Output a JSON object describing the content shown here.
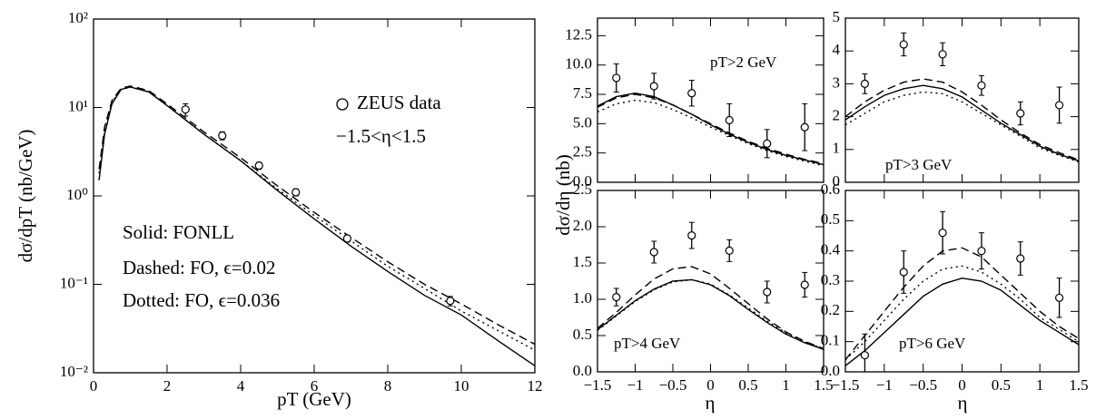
{
  "chart_data": [
    {
      "type": "line",
      "log_y": true,
      "x_label": "pT (GeV)",
      "y_label": "dσ/dpT (nb/GeV)",
      "annotation": "−1.5<η<1.5",
      "xlim": [
        0,
        12
      ],
      "xticks": [
        0,
        2,
        4,
        6,
        8,
        10,
        12
      ],
      "ylim": [
        0.01,
        100
      ],
      "yticks": [
        {
          "value": 0.01,
          "label": "10⁻²"
        },
        {
          "value": 0.1,
          "label": "10⁻¹"
        },
        {
          "value": 1,
          "label": "10⁰"
        },
        {
          "value": 10,
          "label": "10¹"
        },
        {
          "value": 100,
          "label": "10²"
        }
      ],
      "x": [
        0.15,
        0.3,
        0.5,
        0.75,
        1,
        1.5,
        2,
        3,
        4,
        5,
        6,
        7,
        8,
        9,
        10,
        11,
        12
      ],
      "series": [
        {
          "name": "Solid: FONLL",
          "color": "#000000",
          "dash": "solid",
          "values": [
            1.5,
            5,
            11,
            16,
            17,
            15,
            10.5,
            5,
            2.5,
            1.15,
            0.55,
            0.27,
            0.14,
            0.075,
            0.045,
            0.023,
            0.012
          ]
        },
        {
          "name": "Dashed: FO, ϵ=0.02",
          "color": "#000000",
          "dash": "dashed",
          "values": [
            2,
            6,
            12,
            16.5,
            17.5,
            15.5,
            11,
            5.3,
            2.7,
            1.3,
            0.65,
            0.34,
            0.18,
            0.1,
            0.06,
            0.035,
            0.021
          ]
        },
        {
          "name": "Dotted: FO, ϵ=0.036",
          "color": "#000000",
          "dash": "dotted",
          "values": [
            1.8,
            5.5,
            11.5,
            16,
            17,
            15,
            10.5,
            5,
            2.5,
            1.2,
            0.6,
            0.31,
            0.16,
            0.09,
            0.05,
            0.03,
            0.018
          ]
        }
      ],
      "data": {
        "name": "ZEUS data",
        "x": [
          2.5,
          3.5,
          4.5,
          5.5,
          6.9,
          9.7
        ],
        "values": [
          9.5,
          4.8,
          2.2,
          1.1,
          0.33,
          0.065
        ],
        "errors": [
          1.5,
          0.5,
          0.2,
          0.1,
          0.03,
          0.008
        ]
      }
    },
    {
      "type": "line",
      "annotation": "pT>2 GeV",
      "y_label": "dσ/dη (nb)",
      "xlim": [
        -1.5,
        1.5
      ],
      "xticks": [
        -1.5,
        -1,
        -0.5,
        0,
        0.5,
        1,
        1.5
      ],
      "ylim": [
        0,
        14
      ],
      "yticks": [
        {
          "value": 0,
          "label": "0.0"
        },
        2.5,
        {
          "value": 5,
          "label": "5.0"
        },
        7.5,
        {
          "value": 10,
          "label": "10.0"
        },
        12.5
      ],
      "x": [
        -1.5,
        -1.25,
        -1,
        -0.75,
        -0.5,
        -0.25,
        0,
        0.25,
        0.5,
        0.75,
        1,
        1.25,
        1.5
      ],
      "series": [
        {
          "color": "#000000",
          "dash": "solid",
          "values": [
            6.5,
            7.3,
            7.6,
            7.3,
            6.6,
            5.8,
            4.9,
            4.1,
            3.4,
            2.8,
            2.3,
            1.9,
            1.5
          ]
        },
        {
          "color": "#000000",
          "dash": "dashed",
          "values": [
            6.4,
            7.2,
            7.5,
            7.2,
            6.6,
            5.8,
            5.0,
            4.2,
            3.5,
            2.9,
            2.4,
            1.95,
            1.6
          ]
        },
        {
          "color": "#000000",
          "dash": "dotted",
          "values": [
            6.0,
            6.7,
            7.0,
            6.8,
            6.2,
            5.5,
            4.7,
            4.0,
            3.3,
            2.7,
            2.2,
            1.8,
            1.4
          ]
        }
      ],
      "data": {
        "x": [
          -1.25,
          -0.75,
          -0.25,
          0.25,
          0.75,
          1.25
        ],
        "values": [
          8.9,
          8.2,
          7.6,
          5.3,
          3.3,
          4.7
        ],
        "errors": [
          1.2,
          1.1,
          1.1,
          1.4,
          1.2,
          2.0
        ]
      }
    },
    {
      "type": "line",
      "annotation": "pT>3 GeV",
      "xlim": [
        -1.5,
        1.5
      ],
      "xticks": [
        -1.5,
        -1,
        -0.5,
        0,
        0.5,
        1,
        1.5
      ],
      "ylim": [
        0,
        5
      ],
      "yticks": [
        0,
        1,
        2,
        3,
        4,
        5
      ],
      "x": [
        -1.5,
        -1.25,
        -1,
        -0.75,
        -0.5,
        -0.25,
        0,
        0.25,
        0.5,
        0.75,
        1,
        1.25,
        1.5
      ],
      "series": [
        {
          "color": "#000000",
          "dash": "solid",
          "values": [
            1.9,
            2.3,
            2.65,
            2.85,
            2.95,
            2.85,
            2.6,
            2.2,
            1.8,
            1.45,
            1.1,
            0.85,
            0.65
          ]
        },
        {
          "color": "#000000",
          "dash": "dashed",
          "values": [
            2.0,
            2.45,
            2.8,
            3.05,
            3.15,
            3.05,
            2.75,
            2.35,
            1.9,
            1.5,
            1.15,
            0.9,
            0.68
          ]
        },
        {
          "color": "#000000",
          "dash": "dotted",
          "values": [
            1.75,
            2.1,
            2.45,
            2.65,
            2.75,
            2.7,
            2.45,
            2.1,
            1.75,
            1.4,
            1.05,
            0.82,
            0.62
          ]
        }
      ],
      "data": {
        "x": [
          -1.25,
          -0.75,
          -0.25,
          0.25,
          0.75,
          1.25
        ],
        "values": [
          3.0,
          4.2,
          3.9,
          2.95,
          2.1,
          2.35
        ],
        "errors": [
          0.3,
          0.35,
          0.35,
          0.3,
          0.35,
          0.55
        ]
      }
    },
    {
      "type": "line",
      "annotation": "pT>4 GeV",
      "x_label": "η",
      "xlim": [
        -1.5,
        1.5
      ],
      "xticks": [
        {
          "value": -1.5,
          "label": "−1.5"
        },
        {
          "value": -1,
          "label": "−1"
        },
        {
          "value": -0.5,
          "label": "−0.5"
        },
        0,
        0.5,
        1,
        1.5
      ],
      "ylim": [
        0,
        2.5
      ],
      "yticks": [
        {
          "value": 0,
          "label": "0.0"
        },
        0.5,
        {
          "value": 1,
          "label": "1.0"
        },
        1.5,
        {
          "value": 2,
          "label": "2.0"
        },
        2.5
      ],
      "x": [
        -1.5,
        -1.25,
        -1,
        -0.75,
        -0.5,
        -0.25,
        0,
        0.25,
        0.5,
        0.75,
        1,
        1.25,
        1.5
      ],
      "series": [
        {
          "color": "#000000",
          "dash": "solid",
          "values": [
            0.58,
            0.78,
            0.98,
            1.14,
            1.25,
            1.27,
            1.2,
            1.05,
            0.86,
            0.68,
            0.52,
            0.4,
            0.31
          ]
        },
        {
          "color": "#000000",
          "dash": "dashed",
          "values": [
            0.6,
            0.82,
            1.06,
            1.28,
            1.42,
            1.45,
            1.35,
            1.15,
            0.94,
            0.73,
            0.55,
            0.42,
            0.32
          ]
        },
        {
          "color": "#000000",
          "dash": "dotted",
          "values": [
            0.57,
            0.77,
            0.97,
            1.13,
            1.24,
            1.27,
            1.21,
            1.06,
            0.88,
            0.7,
            0.54,
            0.41,
            0.32
          ]
        }
      ],
      "data": {
        "x": [
          -1.25,
          -0.75,
          -0.25,
          0.25,
          0.75,
          1.25
        ],
        "values": [
          1.03,
          1.65,
          1.88,
          1.67,
          1.1,
          1.2
        ],
        "errors": [
          0.12,
          0.15,
          0.18,
          0.15,
          0.15,
          0.17
        ]
      }
    },
    {
      "type": "line",
      "annotation": "pT>6 GeV",
      "x_label": "η",
      "xlim": [
        -1.5,
        1.5
      ],
      "xticks": [
        {
          "value": -1.5,
          "label": "−1.5"
        },
        {
          "value": -1,
          "label": "−1"
        },
        {
          "value": -0.5,
          "label": "−0.5"
        },
        0,
        0.5,
        1,
        1.5
      ],
      "ylim": [
        0,
        0.6
      ],
      "yticks": [
        {
          "value": 0,
          "label": "0.0"
        },
        0.1,
        0.2,
        0.3,
        0.4,
        0.5,
        0.6
      ],
      "x": [
        -1.5,
        -1.25,
        -1,
        -0.75,
        -0.5,
        -0.25,
        0,
        0.25,
        0.5,
        0.75,
        1,
        1.25,
        1.5
      ],
      "series": [
        {
          "color": "#000000",
          "dash": "solid",
          "values": [
            0.02,
            0.07,
            0.13,
            0.19,
            0.25,
            0.29,
            0.31,
            0.3,
            0.27,
            0.22,
            0.17,
            0.13,
            0.09
          ]
        },
        {
          "color": "#000000",
          "dash": "dashed",
          "values": [
            0.04,
            0.12,
            0.2,
            0.28,
            0.35,
            0.4,
            0.41,
            0.38,
            0.32,
            0.26,
            0.2,
            0.15,
            0.11
          ]
        },
        {
          "color": "#000000",
          "dash": "dotted",
          "values": [
            0.04,
            0.1,
            0.17,
            0.24,
            0.3,
            0.34,
            0.35,
            0.33,
            0.29,
            0.24,
            0.18,
            0.14,
            0.1
          ]
        }
      ],
      "data": {
        "x": [
          -1.25,
          -0.75,
          -0.25,
          0.25,
          0.75,
          1.25
        ],
        "values": [
          0.055,
          0.33,
          0.46,
          0.4,
          0.375,
          0.245
        ],
        "errors": [
          0.07,
          0.07,
          0.07,
          0.06,
          0.055,
          0.065
        ]
      }
    }
  ]
}
